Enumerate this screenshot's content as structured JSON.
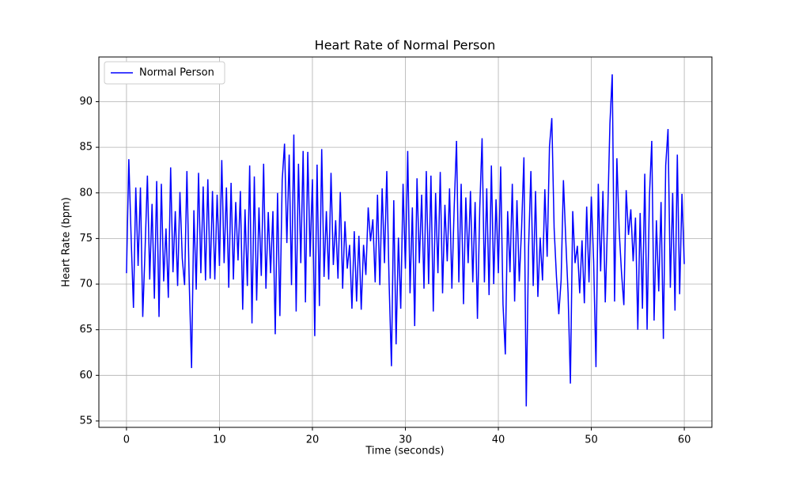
{
  "chart_data": {
    "type": "line",
    "title": "Heart Rate of Normal Person",
    "xlabel": "Time (seconds)",
    "ylabel": "Heart Rate (bpm)",
    "x": [
      0,
      0.25,
      0.5,
      0.75,
      1,
      1.25,
      1.5,
      1.75,
      2,
      2.25,
      2.5,
      2.75,
      3,
      3.25,
      3.5,
      3.75,
      4,
      4.25,
      4.5,
      4.75,
      5,
      5.25,
      5.5,
      5.75,
      6,
      6.25,
      6.5,
      6.75,
      7,
      7.25,
      7.5,
      7.75,
      8,
      8.25,
      8.5,
      8.75,
      9,
      9.25,
      9.5,
      9.75,
      10,
      10.25,
      10.5,
      10.75,
      11,
      11.25,
      11.5,
      11.75,
      12,
      12.25,
      12.5,
      12.75,
      13,
      13.25,
      13.5,
      13.75,
      14,
      14.25,
      14.5,
      14.75,
      15,
      15.25,
      15.5,
      15.75,
      16,
      16.25,
      16.5,
      16.75,
      17,
      17.25,
      17.5,
      17.75,
      18,
      18.25,
      18.5,
      18.75,
      19,
      19.25,
      19.5,
      19.75,
      20,
      20.25,
      20.5,
      20.75,
      21,
      21.25,
      21.5,
      21.75,
      22,
      22.25,
      22.5,
      22.75,
      23,
      23.25,
      23.5,
      23.75,
      24,
      24.25,
      24.5,
      24.75,
      25,
      25.25,
      25.5,
      25.75,
      26,
      26.25,
      26.5,
      26.75,
      27,
      27.25,
      27.5,
      27.75,
      28,
      28.25,
      28.5,
      28.75,
      29,
      29.25,
      29.5,
      29.75,
      30,
      30.25,
      30.5,
      30.75,
      31,
      31.25,
      31.5,
      31.75,
      32,
      32.25,
      32.5,
      32.75,
      33,
      33.25,
      33.5,
      33.75,
      34,
      34.25,
      34.5,
      34.75,
      35,
      35.25,
      35.5,
      35.75,
      36,
      36.25,
      36.5,
      36.75,
      37,
      37.25,
      37.5,
      37.75,
      38,
      38.25,
      38.5,
      38.75,
      39,
      39.25,
      39.5,
      39.75,
      40,
      40.25,
      40.5,
      40.75,
      41,
      41.25,
      41.5,
      41.75,
      42,
      42.25,
      42.5,
      42.75,
      43,
      43.25,
      43.5,
      43.75,
      44,
      44.25,
      44.5,
      44.75,
      45,
      45.25,
      45.5,
      45.75,
      46,
      46.25,
      46.5,
      46.75,
      47,
      47.25,
      47.5,
      47.75,
      48,
      48.25,
      48.5,
      48.75,
      49,
      49.25,
      49.5,
      49.75,
      50,
      50.25,
      50.5,
      50.75,
      51,
      51.25,
      51.5,
      51.75,
      52,
      52.25,
      52.5,
      52.75,
      53,
      53.25,
      53.5,
      53.75,
      54,
      54.25,
      54.5,
      54.75,
      55,
      55.25,
      55.5,
      55.75,
      56,
      56.25,
      56.5,
      56.75,
      57,
      57.25,
      57.5,
      57.75,
      58,
      58.25,
      58.5,
      58.75,
      59,
      59.25,
      59.5,
      59.75,
      60
    ],
    "series": [
      {
        "name": "Normal Person",
        "color": "#0000ff",
        "values": [
          71.2,
          83.7,
          75.1,
          67.4,
          80.6,
          72.0,
          80.6,
          66.4,
          73.8,
          81.9,
          70.5,
          78.8,
          68.4,
          81.3,
          66.4,
          81.0,
          70.3,
          76.1,
          68.5,
          82.8,
          71.3,
          78.0,
          69.8,
          80.1,
          72.8,
          69.9,
          82.4,
          70.2,
          60.8,
          78.1,
          69.4,
          82.2,
          71.2,
          80.7,
          70.4,
          81.5,
          70.6,
          80.2,
          70.5,
          79.8,
          72.0,
          83.6,
          72.3,
          80.6,
          69.6,
          81.1,
          70.5,
          79.0,
          72.6,
          80.2,
          67.2,
          78.2,
          69.8,
          83.0,
          65.7,
          81.8,
          68.2,
          78.4,
          70.9,
          83.2,
          69.5,
          77.9,
          71.2,
          78.0,
          64.5,
          80.0,
          66.5,
          81.4,
          85.4,
          74.5,
          84.2,
          69.9,
          86.4,
          67.0,
          83.2,
          72.3,
          84.6,
          68.0,
          84.5,
          73.0,
          81.5,
          64.3,
          83.1,
          67.6,
          84.8,
          70.8,
          78.0,
          70.5,
          82.2,
          72.1,
          77.0,
          70.6,
          80.1,
          69.5,
          76.9,
          71.7,
          74.3,
          67.3,
          75.8,
          68.1,
          75.3,
          67.2,
          74.3,
          71.0,
          78.4,
          74.7,
          77.1,
          70.2,
          79.8,
          69.9,
          80.5,
          72.3,
          82.4,
          70.1,
          61.0,
          79.2,
          63.4,
          75.1,
          67.3,
          81.0,
          71.7,
          84.6,
          69.0,
          78.4,
          65.4,
          81.6,
          72.3,
          79.8,
          69.5,
          82.4,
          70.0,
          81.9,
          67.0,
          80.0,
          71.2,
          82.3,
          69.0,
          78.7,
          72.5,
          80.5,
          69.5,
          78.4,
          85.7,
          70.2,
          81.0,
          67.8,
          79.5,
          72.3,
          80.2,
          70.2,
          79.0,
          66.2,
          78.3,
          86.0,
          70.2,
          80.5,
          68.8,
          83.0,
          70.0,
          79.3,
          71.2,
          82.9,
          67.8,
          62.3,
          78.0,
          71.3,
          81.0,
          68.1,
          79.2,
          70.3,
          76.1,
          83.9,
          56.6,
          74.0,
          82.4,
          69.8,
          80.2,
          68.6,
          75.1,
          70.4,
          80.4,
          73.0,
          85.1,
          88.2,
          76.1,
          70.8,
          66.7,
          70.4,
          81.4,
          74.9,
          69.0,
          59.1,
          78.0,
          72.3,
          74.2,
          69.0,
          74.8,
          67.9,
          78.5,
          70.2,
          79.6,
          72.5,
          60.9,
          81.0,
          71.4,
          80.2,
          68.0,
          77.0,
          87.6,
          93.0,
          68.1,
          83.8,
          75.8,
          71.2,
          67.7,
          80.3,
          75.4,
          78.2,
          72.5,
          77.3,
          65.0,
          77.8,
          67.3,
          82.1,
          65.0,
          79.6,
          85.7,
          66.0,
          77.0,
          69.2,
          79.0,
          64.0,
          83.0,
          87.0,
          69.6,
          80.0,
          67.1,
          84.2,
          68.9,
          79.9,
          72.2
        ]
      }
    ],
    "xlim": [
      -2.97,
      62.97
    ],
    "ylim": [
      54.3,
      94.9
    ],
    "xticks": [
      0,
      10,
      20,
      30,
      40,
      50,
      60
    ],
    "yticks": [
      55,
      60,
      65,
      70,
      75,
      80,
      85,
      90
    ],
    "grid": true,
    "legend": "upper left"
  }
}
